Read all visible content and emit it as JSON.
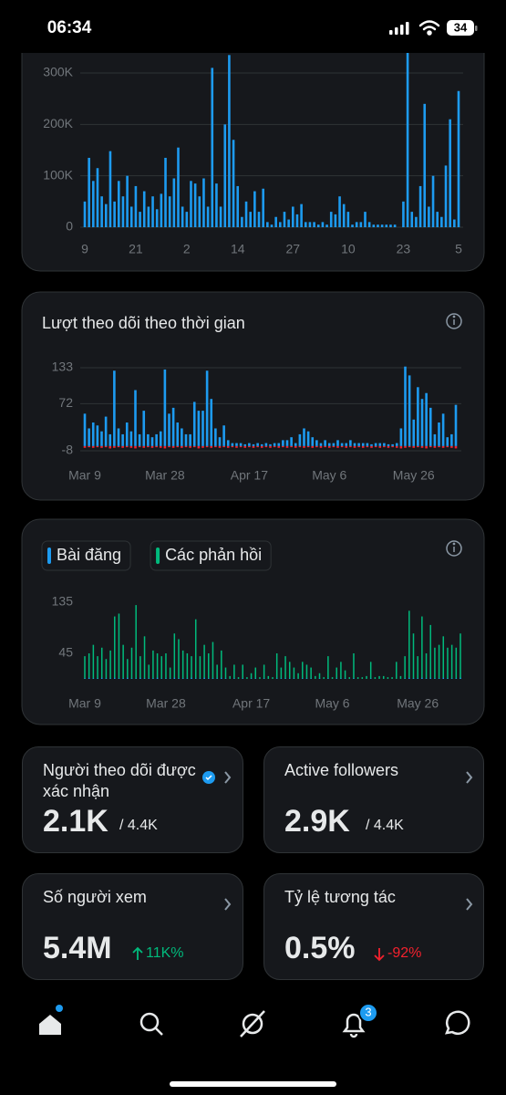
{
  "status_bar": {
    "time": "06:34",
    "battery": "34"
  },
  "chart_data": [
    {
      "type": "bar",
      "color": "#1d9bf0",
      "grid": true,
      "ylim": [
        0,
        340000
      ],
      "yticks": [
        0,
        {
          "value": 100000,
          "label": "100K"
        },
        {
          "value": 200000,
          "label": "200K"
        },
        {
          "value": 300000,
          "label": "300K"
        }
      ],
      "categories": [
        "9",
        null,
        null,
        null,
        null,
        null,
        null,
        null,
        null,
        null,
        null,
        null,
        "21",
        null,
        null,
        null,
        null,
        null,
        null,
        null,
        null,
        null,
        null,
        null,
        "2",
        null,
        null,
        null,
        null,
        null,
        null,
        null,
        null,
        null,
        null,
        null,
        "14",
        null,
        null,
        null,
        null,
        null,
        null,
        null,
        null,
        null,
        null,
        null,
        null,
        "27",
        null,
        null,
        null,
        null,
        null,
        null,
        null,
        null,
        null,
        null,
        null,
        null,
        "10",
        null,
        null,
        null,
        null,
        null,
        null,
        null,
        null,
        null,
        null,
        null,
        null,
        "23",
        null,
        null,
        null,
        null,
        null,
        null,
        null,
        null,
        null,
        null,
        null,
        null,
        "5"
      ],
      "values": [
        50000,
        135000,
        90000,
        115000,
        60000,
        45000,
        148000,
        50000,
        90000,
        60000,
        100000,
        40000,
        80000,
        30000,
        70000,
        40000,
        60000,
        35000,
        65000,
        135000,
        60000,
        95000,
        155000,
        40000,
        30000,
        90000,
        85000,
        60000,
        95000,
        40000,
        310000,
        85000,
        40000,
        200000,
        335000,
        170000,
        80000,
        20000,
        50000,
        30000,
        70000,
        30000,
        75000,
        10000,
        5000,
        20000,
        10000,
        30000,
        15000,
        40000,
        25000,
        45000,
        10000,
        10000,
        10000,
        5000,
        10000,
        5000,
        30000,
        25000,
        60000,
        45000,
        30000,
        5000,
        10000,
        10000,
        30000,
        10000,
        5000,
        5000,
        5000,
        5000,
        5000,
        5000,
        0,
        50000,
        340000,
        30000,
        20000,
        80000,
        240000,
        40000,
        100000,
        30000,
        20000,
        120000,
        210000,
        15000,
        265000
      ]
    },
    {
      "type": "bar",
      "title": "Lượt theo dõi theo thời gian",
      "grid": true,
      "ylim": [
        -8,
        133
      ],
      "yticks": [
        -8,
        72,
        133
      ],
      "categories": [
        "Mar 9",
        null,
        null,
        null,
        null,
        null,
        null,
        null,
        null,
        null,
        null,
        null,
        null,
        null,
        null,
        null,
        null,
        null,
        null,
        "Mar 28",
        null,
        null,
        null,
        null,
        null,
        null,
        null,
        null,
        null,
        null,
        null,
        null,
        null,
        null,
        null,
        null,
        null,
        null,
        null,
        "Apr 17",
        null,
        null,
        null,
        null,
        null,
        null,
        null,
        null,
        null,
        null,
        null,
        null,
        null,
        null,
        null,
        null,
        null,
        null,
        "May 6",
        null,
        null,
        null,
        null,
        null,
        null,
        null,
        null,
        null,
        null,
        null,
        null,
        null,
        null,
        null,
        null,
        null,
        null,
        null,
        "May 26",
        null,
        null,
        null,
        null,
        null,
        null,
        null,
        null,
        null,
        null
      ],
      "series": [
        {
          "color": "#1d9bf0",
          "values": [
            55,
            30,
            40,
            35,
            25,
            50,
            20,
            128,
            30,
            20,
            40,
            25,
            95,
            20,
            60,
            20,
            15,
            20,
            25,
            130,
            55,
            65,
            40,
            30,
            20,
            20,
            75,
            60,
            60,
            128,
            80,
            30,
            15,
            35,
            10,
            5,
            5,
            5,
            3,
            5,
            3,
            5,
            3,
            5,
            3,
            5,
            5,
            10,
            10,
            15,
            5,
            20,
            30,
            25,
            15,
            10,
            5,
            10,
            5,
            5,
            10,
            5,
            5,
            10,
            5,
            5,
            5,
            5,
            3,
            5,
            5,
            5,
            3,
            3,
            5,
            30,
            135,
            120,
            45,
            100,
            80,
            90,
            65,
            20,
            40,
            55,
            15,
            20,
            70
          ]
        },
        {
          "color": "#f4212e",
          "values": [
            -3,
            -2,
            -3,
            -2,
            -3,
            -2,
            -4,
            -3,
            -2,
            -3,
            -2,
            -3,
            -4,
            -2,
            -3,
            -2,
            -3,
            -2,
            -3,
            -4,
            -2,
            -3,
            -2,
            -3,
            -2,
            -3,
            -2,
            -4,
            -3,
            -2,
            -3,
            -2,
            -3,
            -2,
            -3,
            -2,
            -3,
            -2,
            -3,
            -2,
            -3,
            -2,
            -3,
            -2,
            -3,
            -2,
            -3,
            -2,
            -3,
            -2,
            -3,
            -2,
            -3,
            -2,
            -3,
            -2,
            -3,
            -2,
            -3,
            -2,
            -3,
            -2,
            -3,
            -2,
            -3,
            -2,
            -3,
            -2,
            -3,
            -2,
            -3,
            -2,
            -3,
            -2,
            -3,
            -4,
            -3,
            -2,
            -3,
            -2,
            -3,
            -4,
            -2,
            -3,
            -2,
            -3,
            -2,
            -3,
            -4
          ]
        }
      ]
    },
    {
      "type": "bar",
      "grid": false,
      "legend": "top-left",
      "ylim": [
        0,
        135
      ],
      "yticks": [
        45,
        135
      ],
      "categories": [
        "Mar 9",
        null,
        null,
        null,
        null,
        null,
        null,
        null,
        null,
        null,
        null,
        null,
        null,
        null,
        null,
        null,
        null,
        null,
        null,
        "Mar 28",
        null,
        null,
        null,
        null,
        null,
        null,
        null,
        null,
        null,
        null,
        null,
        null,
        null,
        null,
        null,
        null,
        null,
        null,
        null,
        "Apr 17",
        null,
        null,
        null,
        null,
        null,
        null,
        null,
        null,
        null,
        null,
        null,
        null,
        null,
        null,
        null,
        null,
        null,
        null,
        "May 6",
        null,
        null,
        null,
        null,
        null,
        null,
        null,
        null,
        null,
        null,
        null,
        null,
        null,
        null,
        null,
        null,
        null,
        null,
        null,
        "May 26",
        null,
        null,
        null,
        null,
        null,
        null,
        null,
        null,
        null,
        null
      ],
      "series": [
        {
          "name": "Bài đăng",
          "color": "#1d9bf0",
          "values": [
            1,
            2,
            1,
            1,
            2,
            1,
            1,
            2,
            1,
            1,
            2,
            1,
            1,
            2,
            1,
            1,
            1,
            2,
            1,
            1,
            1,
            2,
            1,
            1,
            1,
            2,
            1,
            1,
            2,
            1,
            1,
            1,
            2,
            1,
            0,
            1,
            0,
            1,
            0,
            1,
            1,
            0,
            1,
            0,
            0,
            1,
            1,
            1,
            1,
            1,
            0,
            1,
            1,
            1,
            0,
            1,
            0,
            1,
            0,
            1,
            1,
            1,
            0,
            1,
            0,
            0,
            0,
            1,
            0,
            0,
            0,
            0,
            0,
            0,
            0,
            1,
            2,
            1,
            1,
            2,
            1,
            2,
            1,
            1,
            2,
            1,
            1,
            1,
            2
          ]
        },
        {
          "name": "Các phản hồi",
          "color": "#00ba7c",
          "values": [
            40,
            45,
            60,
            40,
            55,
            35,
            50,
            110,
            115,
            60,
            35,
            55,
            130,
            40,
            75,
            25,
            50,
            45,
            40,
            45,
            20,
            80,
            70,
            50,
            45,
            40,
            105,
            40,
            60,
            45,
            65,
            25,
            50,
            20,
            5,
            25,
            3,
            25,
            3,
            10,
            20,
            3,
            25,
            5,
            3,
            45,
            20,
            40,
            30,
            20,
            10,
            30,
            25,
            20,
            5,
            10,
            3,
            40,
            3,
            20,
            30,
            15,
            3,
            45,
            3,
            3,
            5,
            30,
            3,
            5,
            5,
            3,
            3,
            30,
            5,
            40,
            120,
            80,
            40,
            110,
            45,
            95,
            55,
            60,
            75,
            55,
            60,
            55,
            80
          ]
        }
      ]
    }
  ],
  "cards": [
    {
      "title": "Người theo dõi được xác nhận",
      "value": "2.1K",
      "total": "/ 4.4K"
    },
    {
      "title": "Active followers",
      "value": "2.9K",
      "total": "/ 4.4K"
    },
    {
      "title": "Số người xem",
      "value": "5.4M",
      "change": "11K%",
      "trend": "up"
    },
    {
      "title": "Tỷ lệ tương tác",
      "value": "0.5%",
      "change": "-92%",
      "trend": "down"
    }
  ],
  "nav": {
    "notifications_badge": "3"
  }
}
